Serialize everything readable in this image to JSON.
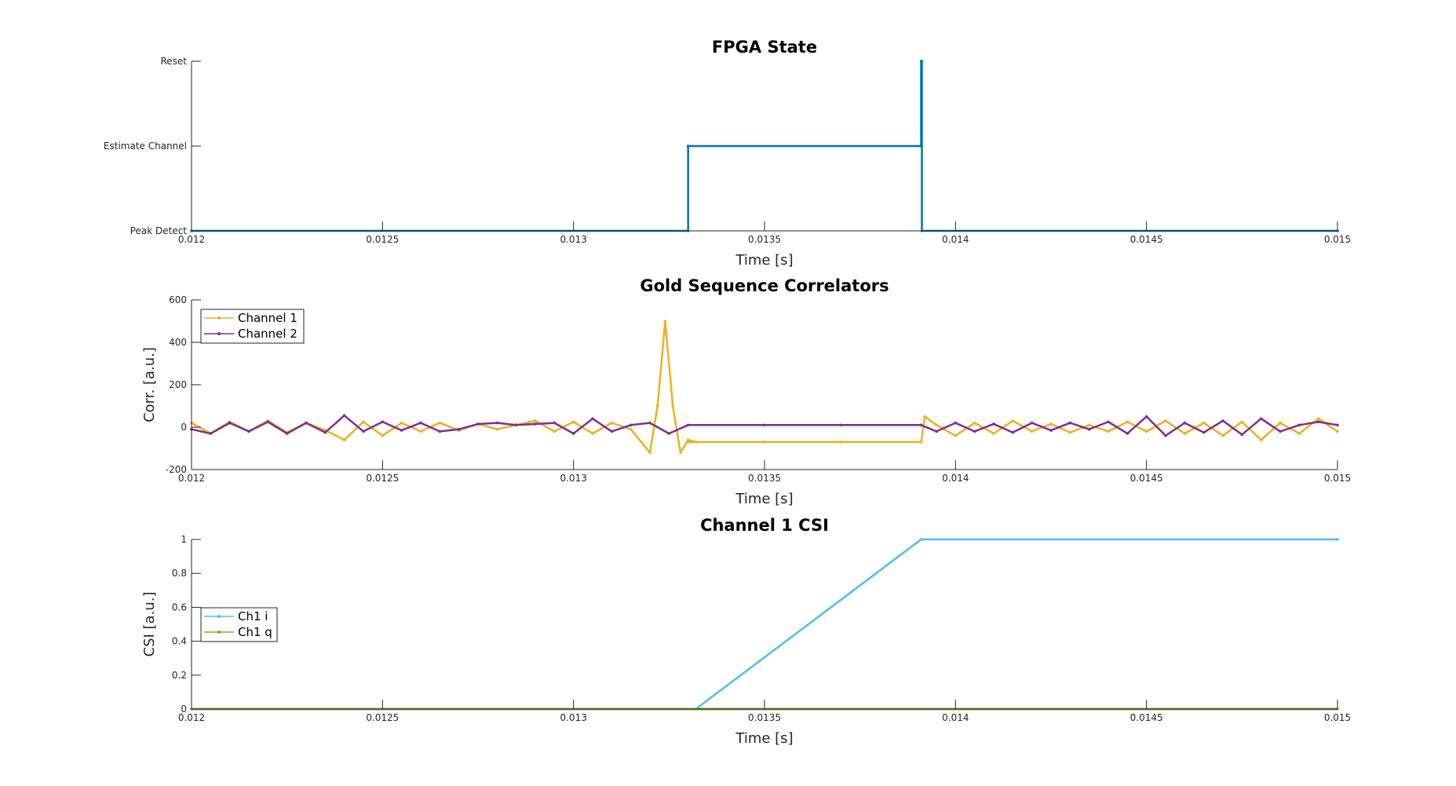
{
  "chart_data": [
    {
      "type": "line",
      "title": "FPGA State",
      "xlabel": "Time [s]",
      "ylabel": "",
      "xlim": [
        0.012,
        0.015
      ],
      "ylim": [
        0,
        2
      ],
      "xticks": [
        0.012,
        0.0125,
        0.013,
        0.0135,
        0.014,
        0.0145,
        0.015
      ],
      "xtick_labels": [
        "0.012",
        "0.0125",
        "0.013",
        "0.0135",
        "0.014",
        "0.0145",
        "0.015"
      ],
      "yticks": [
        0,
        1,
        2
      ],
      "ytick_labels": [
        "Peak Detect",
        "Estimate Channel",
        "Reset"
      ],
      "legend": null,
      "series": [
        {
          "color": "#0072BD",
          "x": [
            0.012,
            0.0133,
            0.0133,
            0.01391,
            0.01391,
            0.013912,
            0.013912,
            0.015
          ],
          "y": [
            0,
            0,
            1,
            1,
            2,
            2,
            0,
            0
          ]
        }
      ]
    },
    {
      "type": "line",
      "title": "Gold Sequence Correlators",
      "xlabel": "Time [s]",
      "ylabel": "Corr. [a.u.]",
      "xlim": [
        0.012,
        0.015
      ],
      "ylim": [
        -200,
        600
      ],
      "xticks": [
        0.012,
        0.0125,
        0.013,
        0.0135,
        0.014,
        0.0145,
        0.015
      ],
      "xtick_labels": [
        "0.012",
        "0.0125",
        "0.013",
        "0.0135",
        "0.014",
        "0.0145",
        "0.015"
      ],
      "yticks": [
        -200,
        0,
        200,
        400,
        600
      ],
      "ytick_labels": [
        "-200",
        "0",
        "200",
        "400",
        "600"
      ],
      "legend": "top-left",
      "series": [
        {
          "name": "Channel 1",
          "color": "#EDB120",
          "x": [
            0.012,
            0.01205,
            0.0121,
            0.01215,
            0.0122,
            0.01225,
            0.0123,
            0.01235,
            0.0124,
            0.01245,
            0.0125,
            0.01255,
            0.0126,
            0.01265,
            0.0127,
            0.01275,
            0.0128,
            0.01285,
            0.0129,
            0.01295,
            0.013,
            0.01305,
            0.0131,
            0.01315,
            0.0132,
            0.01322,
            0.01324,
            0.01326,
            0.01328,
            0.0133,
            0.01332,
            0.0133,
            0.0135,
            0.0137,
            0.01391,
            0.01392,
            0.01395,
            0.014,
            0.01405,
            0.0141,
            0.01415,
            0.0142,
            0.01425,
            0.0143,
            0.01435,
            0.0144,
            0.01445,
            0.0145,
            0.01455,
            0.0146,
            0.01465,
            0.0147,
            0.01475,
            0.0148,
            0.01485,
            0.0149,
            0.01495,
            0.015
          ],
          "y": [
            20,
            -30,
            25,
            -20,
            30,
            -25,
            20,
            -15,
            -60,
            25,
            -40,
            20,
            -20,
            20,
            -15,
            15,
            -10,
            10,
            30,
            -20,
            25,
            -30,
            20,
            -10,
            -120,
            100,
            500,
            100,
            -120,
            -60,
            -70,
            -70,
            -70,
            -70,
            -70,
            50,
            10,
            -40,
            20,
            -30,
            30,
            -20,
            15,
            -25,
            10,
            -20,
            25,
            -20,
            30,
            -30,
            20,
            -40,
            25,
            -60,
            20,
            -30,
            40,
            -20
          ]
        },
        {
          "name": "Channel 2",
          "color": "#7E2F8E",
          "x": [
            0.012,
            0.01205,
            0.0121,
            0.01215,
            0.0122,
            0.01225,
            0.0123,
            0.01235,
            0.0124,
            0.01245,
            0.0125,
            0.01255,
            0.0126,
            0.01265,
            0.0127,
            0.01275,
            0.0128,
            0.01285,
            0.0129,
            0.01295,
            0.013,
            0.01305,
            0.0131,
            0.01315,
            0.0132,
            0.01325,
            0.0133,
            0.0135,
            0.0137,
            0.01391,
            0.01395,
            0.014,
            0.01405,
            0.0141,
            0.01415,
            0.0142,
            0.01425,
            0.0143,
            0.01435,
            0.0144,
            0.01445,
            0.0145,
            0.01455,
            0.0146,
            0.01465,
            0.0147,
            0.01475,
            0.0148,
            0.01485,
            0.0149,
            0.01495,
            0.015
          ],
          "y": [
            -10,
            -30,
            20,
            -20,
            25,
            -30,
            20,
            -25,
            55,
            -20,
            25,
            -15,
            20,
            -20,
            -10,
            15,
            20,
            10,
            15,
            20,
            -30,
            40,
            -20,
            10,
            20,
            -30,
            10,
            10,
            10,
            10,
            -20,
            20,
            -20,
            15,
            -25,
            20,
            -15,
            20,
            -10,
            25,
            -30,
            50,
            -40,
            20,
            -25,
            30,
            -35,
            40,
            -20,
            10,
            25,
            10
          ]
        }
      ]
    },
    {
      "type": "line",
      "title": "Channel 1 CSI",
      "xlabel": "Time [s]",
      "ylabel": "CSI [a.u.]",
      "xlim": [
        0.012,
        0.015
      ],
      "ylim": [
        0,
        1
      ],
      "xticks": [
        0.012,
        0.0125,
        0.013,
        0.0135,
        0.014,
        0.0145,
        0.015
      ],
      "xtick_labels": [
        "0.012",
        "0.0125",
        "0.013",
        "0.0135",
        "0.014",
        "0.0145",
        "0.015"
      ],
      "yticks": [
        0,
        0.2,
        0.4,
        0.6,
        0.8,
        1
      ],
      "ytick_labels": [
        "0",
        "0.2",
        "0.4",
        "0.6",
        "0.8",
        "1"
      ],
      "legend": "middle-left",
      "series": [
        {
          "name": "Ch1 i",
          "color": "#4DBEEE",
          "x": [
            0.012,
            0.01332,
            0.01391,
            0.015
          ],
          "y": [
            0,
            0,
            1,
            1
          ]
        },
        {
          "name": "Ch1 q",
          "color": "#77AC30",
          "x": [
            0.012,
            0.015
          ],
          "y": [
            0,
            0
          ]
        }
      ]
    }
  ]
}
